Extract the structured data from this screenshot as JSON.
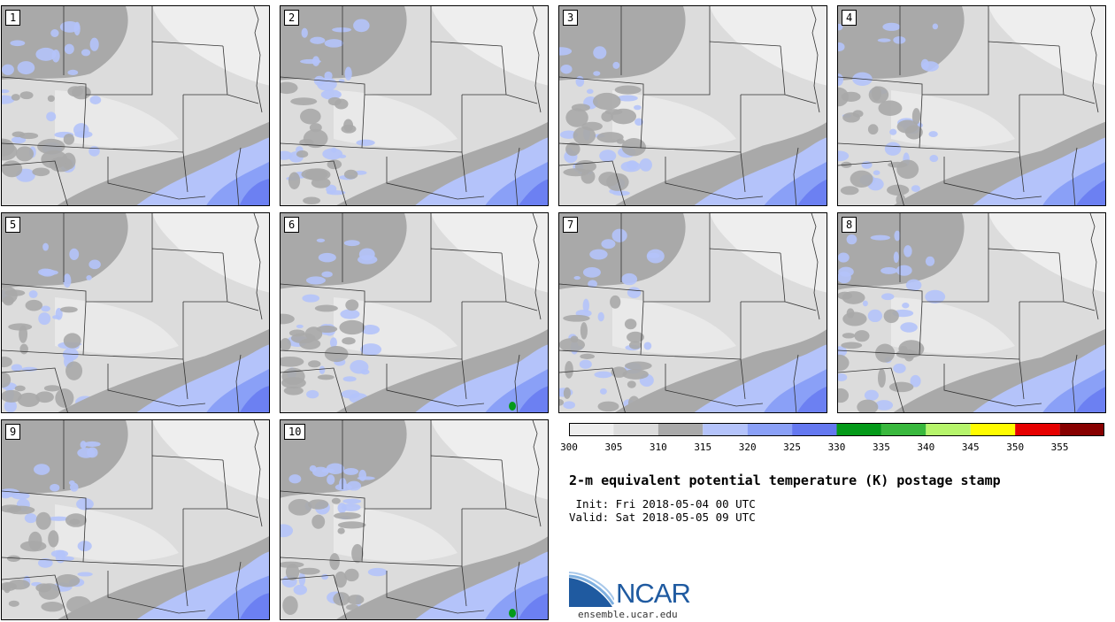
{
  "panels": [
    {
      "label": "1",
      "variant": 0
    },
    {
      "label": "2",
      "variant": 1
    },
    {
      "label": "3",
      "variant": 2
    },
    {
      "label": "4",
      "variant": 3
    },
    {
      "label": "5",
      "variant": 4
    },
    {
      "label": "6",
      "variant": 5
    },
    {
      "label": "7",
      "variant": 6
    },
    {
      "label": "8",
      "variant": 7
    },
    {
      "label": "9",
      "variant": 8
    },
    {
      "label": "10",
      "variant": 9
    }
  ],
  "colorbar": {
    "ticks": [
      "300",
      "305",
      "310",
      "315",
      "320",
      "325",
      "330",
      "335",
      "340",
      "345",
      "350",
      "355"
    ],
    "colors": [
      "#eeeeee",
      "#dcdcdc",
      "#a9a9a9",
      "#b4c3fa",
      "#8aa0f7",
      "#6478f0",
      "#049a19",
      "#39b83d",
      "#b6f46b",
      "#fffc00",
      "#e60000",
      "#870000"
    ]
  },
  "title": "2-m equivalent potential temperature (K) postage stamp",
  "init_line": " Init: Fri 2018-05-04 00 UTC",
  "valid_line": "Valid: Sat 2018-05-05 09 UTC",
  "logo": {
    "text": "NCAR",
    "url": "ensemble.ucar.edu"
  }
}
